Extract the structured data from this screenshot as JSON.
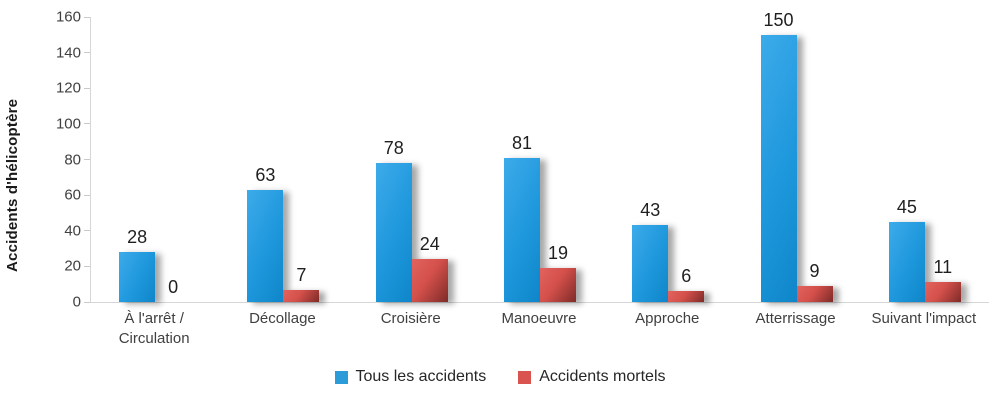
{
  "chart_data": {
    "type": "bar",
    "title": "",
    "ylabel": "Accidents d'hélicoptère",
    "xlabel": "",
    "categories": [
      "À l'arrêt / Circulation",
      "Décollage",
      "Croisière",
      "Manoeuvre",
      "Approche",
      "Atterrissage",
      "Suivant l'impact"
    ],
    "series": [
      {
        "name": "Tous les accidents",
        "values": [
          28,
          63,
          78,
          81,
          43,
          150,
          45
        ],
        "color": "#2b9cd8"
      },
      {
        "name": "Accidents mortels",
        "values": [
          0,
          7,
          24,
          19,
          6,
          9,
          11
        ],
        "color": "#d9534f"
      }
    ],
    "ylim": [
      0,
      160
    ],
    "yticks": [
      0,
      20,
      40,
      60,
      80,
      100,
      120,
      140,
      160
    ],
    "grid": false,
    "legend_position": "bottom",
    "value_labels": true
  },
  "colors": {
    "axis": "#d6d6d6",
    "tick_label": "#404040",
    "value_label": "#1f1f1f",
    "background": "#ffffff"
  }
}
